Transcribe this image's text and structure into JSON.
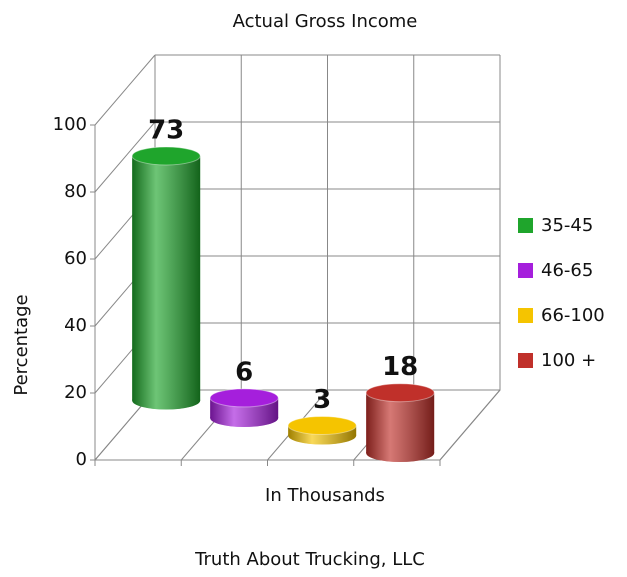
{
  "chart_data": {
    "type": "bar3d",
    "title": "Actual Gross Income",
    "xlabel": "In Thousands",
    "ylabel": "Percentage",
    "footer": "Truth About Trucking, LLC",
    "categories": [
      "35-45",
      "46-65",
      "66-100",
      "100 +"
    ],
    "values": [
      73,
      6,
      3,
      18
    ],
    "colors": [
      "#1fa52c",
      "#a51fdc",
      "#f5c400",
      "#c0302a"
    ],
    "ylim": [
      0,
      100
    ],
    "yticks": [
      0,
      20,
      40,
      60,
      80,
      100
    ],
    "grid": true,
    "legend": "right"
  }
}
